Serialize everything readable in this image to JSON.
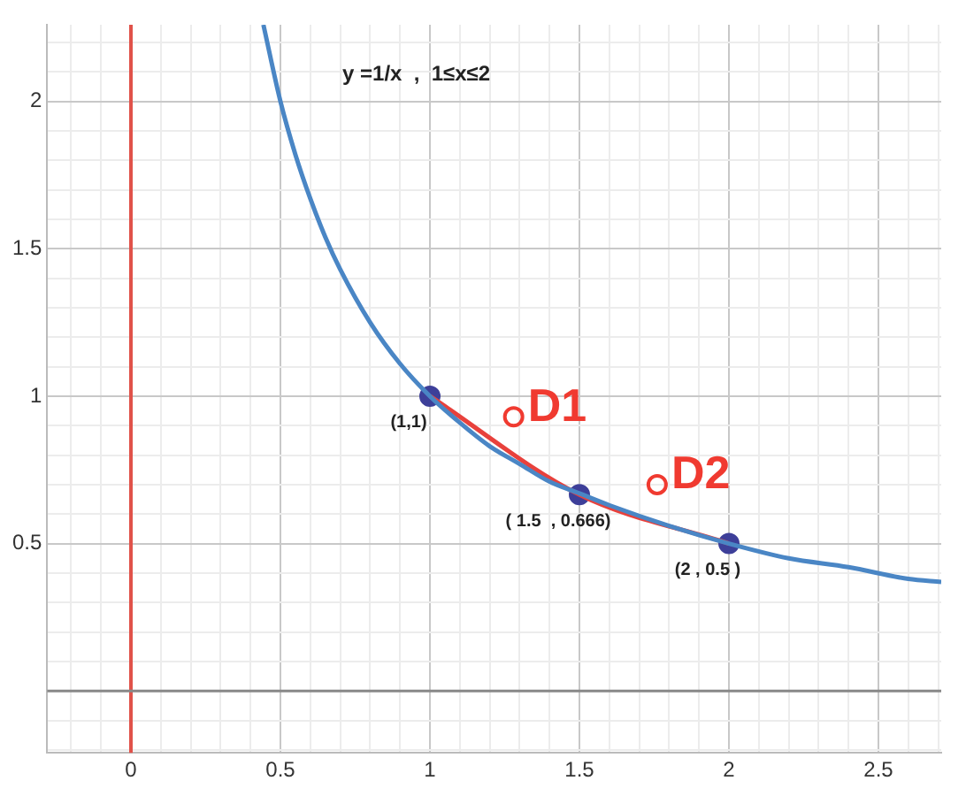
{
  "chart_data": {
    "type": "line",
    "xlim": [
      -0.28,
      2.71
    ],
    "ylim": [
      -0.21,
      2.26
    ],
    "xticks": [
      {
        "value": -0.2,
        "label": null
      },
      {
        "value": -0.1,
        "label": null
      },
      0,
      {
        "value": 0.1,
        "label": null
      },
      {
        "value": 0.2,
        "label": null
      },
      {
        "value": 0.3,
        "label": null
      },
      {
        "value": 0.4,
        "label": null
      },
      0.5,
      {
        "value": 0.6,
        "label": null
      },
      {
        "value": 0.7,
        "label": null
      },
      {
        "value": 0.8,
        "label": null
      },
      {
        "value": 0.9,
        "label": null
      },
      1,
      {
        "value": 1.1,
        "label": null
      },
      {
        "value": 1.2,
        "label": null
      },
      {
        "value": 1.3,
        "label": null
      },
      {
        "value": 1.4,
        "label": null
      },
      1.5,
      {
        "value": 1.6,
        "label": null
      },
      {
        "value": 1.7,
        "label": null
      },
      {
        "value": 1.8,
        "label": null
      },
      {
        "value": 1.9,
        "label": null
      },
      2,
      {
        "value": 2.1,
        "label": null
      },
      {
        "value": 2.2,
        "label": null
      },
      {
        "value": 2.3,
        "label": null
      },
      {
        "value": 2.4,
        "label": null
      },
      2.5,
      {
        "value": 2.6,
        "label": null
      },
      {
        "value": 2.7,
        "label": null
      }
    ],
    "yticks": [
      {
        "value": -0.2,
        "label": null
      },
      {
        "value": -0.1,
        "label": null
      },
      {
        "value": 0,
        "label": null
      },
      {
        "value": 0.1,
        "label": null
      },
      {
        "value": 0.2,
        "label": null
      },
      {
        "value": 0.3,
        "label": null
      },
      {
        "value": 0.4,
        "label": null
      },
      0.5,
      {
        "value": 0.6,
        "label": null
      },
      {
        "value": 0.7,
        "label": null
      },
      {
        "value": 0.8,
        "label": null
      },
      {
        "value": 0.9,
        "label": null
      },
      1,
      {
        "value": 1.1,
        "label": null
      },
      {
        "value": 1.2,
        "label": null
      },
      {
        "value": 1.3,
        "label": null
      },
      {
        "value": 1.4,
        "label": null
      },
      1.5,
      {
        "value": 1.6,
        "label": null
      },
      {
        "value": 1.7,
        "label": null
      },
      {
        "value": 1.8,
        "label": null
      },
      {
        "value": 1.9,
        "label": null
      },
      2,
      {
        "value": 2.1,
        "label": null
      },
      {
        "value": 2.2,
        "label": null
      }
    ],
    "grid": true,
    "ref_lines": [
      {
        "axis": "x",
        "value": 0,
        "color": "#e0524a"
      },
      {
        "axis": "y",
        "value": 0,
        "color": "#888888"
      }
    ],
    "series": [
      {
        "color": "#4a86c5",
        "marker": "none",
        "x": [
          0.443,
          0.5,
          0.55,
          0.6,
          0.65,
          0.7,
          0.8,
          0.9,
          1,
          1.1,
          1.2,
          1.3,
          1.4,
          1.5,
          1.6,
          1.8,
          2,
          2.2,
          2.4,
          2.6,
          2.71
        ],
        "values": [
          2.26,
          2,
          1.82,
          1.67,
          1.54,
          1.43,
          1.25,
          1.11,
          1,
          0.91,
          0.83,
          0.77,
          0.71,
          0.67,
          0.63,
          0.56,
          0.5,
          0.45,
          0.42,
          0.38,
          0.37
        ]
      },
      {
        "color": "#e8413c",
        "marker": "none",
        "x": [
          1,
          1.5,
          2
        ],
        "values": [
          1,
          0.666,
          0.5
        ]
      },
      {
        "type": "scatter",
        "color": "#3d3f99",
        "marker": "circle",
        "x": [
          1,
          1.5,
          2
        ],
        "values": [
          1,
          0.666,
          0.5
        ]
      },
      {
        "type": "scatter",
        "name": "D1",
        "color": "#f03a30",
        "marker": "circle",
        "x": [
          1.28
        ],
        "values": [
          0.93
        ]
      },
      {
        "type": "scatter",
        "name": "D2",
        "color": "#f03a30",
        "marker": "circle",
        "x": [
          1.76
        ],
        "values": [
          0.7
        ]
      }
    ],
    "annotations": [
      "y =1/x  ,  1≤x≤2",
      {
        "text": "(1,1)",
        "x": 1,
        "y": 1
      },
      {
        "text": "( 1.5  , 0.666)",
        "x": 1.5,
        "y": 0.666
      },
      {
        "text": "(2 , 0.5 )",
        "x": 2,
        "y": 0.5
      }
    ]
  }
}
